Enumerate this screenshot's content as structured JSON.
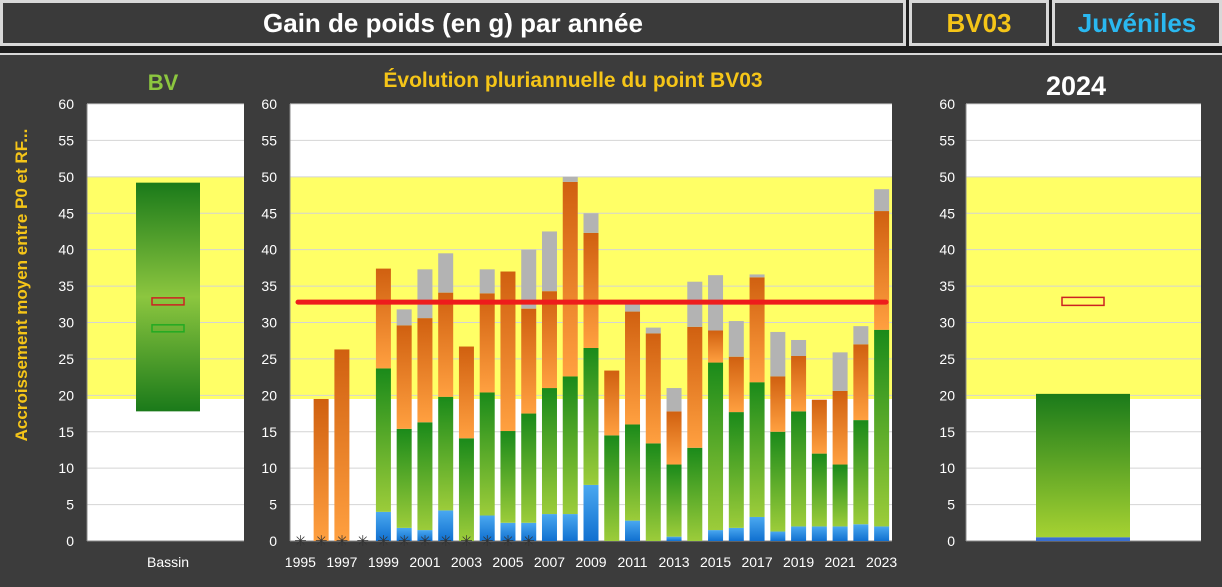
{
  "header": {
    "title": "Gain de poids (en g) par année",
    "point": "BV03",
    "stage": "Juvéniles"
  },
  "colors": {
    "band": "#ffff66",
    "reference_line": "#ee1c1c",
    "juvenile_title": "#2ab8f0",
    "point_title": "#f5c518",
    "bv_title": "#8cc63f"
  },
  "chart_data": [
    {
      "type": "bar",
      "panel": "bv",
      "title": "BV",
      "ylabel": "Accroissement moyen entre P0 et RF...",
      "ylim": [
        0,
        60
      ],
      "yticks": [
        0,
        5,
        10,
        15,
        20,
        25,
        30,
        35,
        40,
        45,
        50,
        55,
        60
      ],
      "band": [
        19.5,
        50
      ],
      "categories": [
        "Bassin"
      ],
      "range_bar": {
        "min": 17.8,
        "max": 49.2
      },
      "markers": [
        {
          "value": 32.9,
          "color": "#cc2222"
        },
        {
          "value": 29.2,
          "color": "#22aa22"
        }
      ]
    },
    {
      "type": "bar",
      "panel": "evolution",
      "title": "Évolution pluriannuelle du point BV03",
      "ylim": [
        0,
        60
      ],
      "yticks": [
        0,
        5,
        10,
        15,
        20,
        25,
        30,
        35,
        40,
        45,
        50,
        55,
        60
      ],
      "band": [
        19.5,
        50
      ],
      "reference_line": 32.8,
      "x": [
        1995,
        1996,
        1997,
        1998,
        1999,
        2000,
        2001,
        2002,
        2003,
        2004,
        2005,
        2006,
        2007,
        2008,
        2009,
        2010,
        2011,
        2012,
        2013,
        2014,
        2015,
        2016,
        2017,
        2018,
        2019,
        2020,
        2021,
        2022,
        2023
      ],
      "xticks": [
        "1995",
        "1997",
        "1999",
        "2001",
        "2003",
        "2005",
        "2007",
        "2009",
        "2011",
        "2013",
        "2015",
        "2017",
        "2019",
        "2021",
        "2023"
      ],
      "missing_markers": [
        1995,
        1996,
        1997,
        1998,
        1999,
        2000,
        2001,
        2002,
        2003,
        2004,
        2005,
        2006
      ],
      "series": [
        {
          "values": [
            0,
            0,
            0,
            0,
            4.0,
            1.8,
            1.5,
            4.2,
            0,
            3.5,
            2.5,
            2.5,
            3.7,
            3.7,
            7.7,
            0,
            2.8,
            0,
            0.6,
            0,
            1.5,
            1.8,
            3.3,
            1.3,
            2.0,
            2.0,
            2.0,
            2.3,
            2.0
          ]
        },
        {
          "values": [
            0,
            0,
            0,
            0,
            23.7,
            15.4,
            16.3,
            19.8,
            14.1,
            20.4,
            15.1,
            17.5,
            21.0,
            22.6,
            26.5,
            14.5,
            16.0,
            13.4,
            10.5,
            12.8,
            24.5,
            17.7,
            21.8,
            15.0,
            17.8,
            12.0,
            10.5,
            16.6,
            29.0
          ]
        },
        {
          "values": [
            0,
            19.5,
            26.3,
            0,
            37.4,
            29.6,
            30.6,
            34.1,
            26.7,
            34.0,
            37.0,
            31.9,
            34.3,
            49.3,
            42.3,
            23.4,
            31.5,
            28.5,
            17.8,
            29.4,
            28.9,
            25.3,
            36.2,
            22.6,
            25.4,
            19.4,
            20.6,
            27.0,
            45.3
          ]
        },
        {
          "values": [
            0,
            19.5,
            26.3,
            0,
            37.4,
            31.8,
            37.3,
            39.5,
            26.7,
            37.3,
            37.0,
            40.0,
            42.5,
            50.0,
            45.0,
            23.4,
            32.9,
            29.3,
            21.0,
            35.6,
            36.5,
            30.2,
            36.6,
            28.7,
            27.6,
            19.4,
            25.9,
            29.5,
            48.3
          ]
        }
      ]
    },
    {
      "type": "bar",
      "panel": "current_year",
      "title": "2024",
      "ylim": [
        0,
        60
      ],
      "yticks": [
        0,
        5,
        10,
        15,
        20,
        25,
        30,
        35,
        40,
        45,
        50,
        55,
        60
      ],
      "band": [
        19.5,
        50
      ],
      "blue": 0.5,
      "green": 20.2,
      "marker": 32.9
    }
  ]
}
